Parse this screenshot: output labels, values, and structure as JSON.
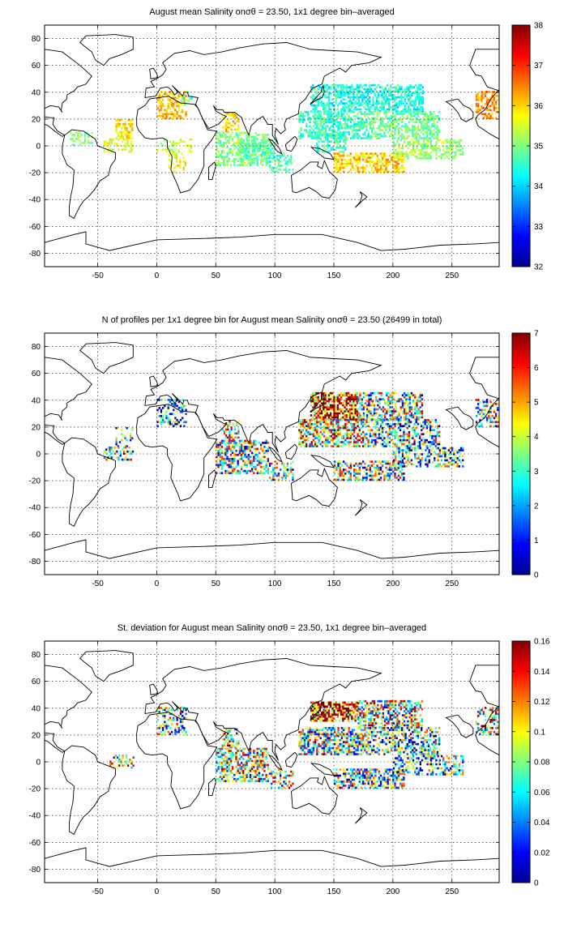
{
  "charts": [
    {
      "title": "August mean Salinity onσθ = 23.50, 1x1 degree bin–averaged",
      "colorbar_ticks": [
        "32",
        "33",
        "34",
        "35",
        "36",
        "37",
        "38"
      ],
      "colorbar_min": 32,
      "colorbar_max": 38,
      "regions": [
        {
          "lon": [
            0,
            25
          ],
          "lat": [
            20,
            40
          ],
          "value": 36.1,
          "density": 0.55
        },
        {
          "lon": [
            -35,
            -20
          ],
          "lat": [
            5,
            20
          ],
          "value": 35.9,
          "density": 0.5
        },
        {
          "lon": [
            -45,
            -20
          ],
          "lat": [
            -5,
            5
          ],
          "value": 35.5,
          "density": 0.45
        },
        {
          "lon": [
            -75,
            -55
          ],
          "lat": [
            0,
            10
          ],
          "value": 35.1,
          "density": 0.3
        },
        {
          "lon": [
            10,
            25
          ],
          "lat": [
            -20,
            -5
          ],
          "value": 35.7,
          "density": 0.3
        },
        {
          "lon": [
            20,
            30
          ],
          "lat": [
            30,
            40
          ],
          "value": 34.6,
          "density": 0.35
        },
        {
          "lon": [
            55,
            70
          ],
          "lat": [
            10,
            25
          ],
          "value": 36.0,
          "density": 0.45
        },
        {
          "lon": [
            50,
            95
          ],
          "lat": [
            -15,
            10
          ],
          "value": 35.0,
          "density": 0.55
        },
        {
          "lon": [
            70,
            100
          ],
          "lat": [
            -10,
            5
          ],
          "value": 34.7,
          "density": 0.5
        },
        {
          "lon": [
            95,
            115
          ],
          "lat": [
            -20,
            -5
          ],
          "value": 34.6,
          "density": 0.45
        },
        {
          "lon": [
            130,
            225
          ],
          "lat": [
            25,
            45
          ],
          "value": 34.4,
          "density": 0.6
        },
        {
          "lon": [
            120,
            180
          ],
          "lat": [
            5,
            25
          ],
          "value": 34.6,
          "density": 0.6
        },
        {
          "lon": [
            180,
            240
          ],
          "lat": [
            5,
            25
          ],
          "value": 34.9,
          "density": 0.55
        },
        {
          "lon": [
            150,
            210
          ],
          "lat": [
            -20,
            -5
          ],
          "value": 36.0,
          "density": 0.6
        },
        {
          "lon": [
            200,
            260
          ],
          "lat": [
            -10,
            5
          ],
          "value": 35.2,
          "density": 0.5
        },
        {
          "lon": [
            135,
            160
          ],
          "lat": [
            -5,
            10
          ],
          "value": 34.6,
          "density": 0.5
        },
        {
          "lon": [
            270,
            290
          ],
          "lat": [
            20,
            40
          ],
          "value": 36.4,
          "density": 0.5
        },
        {
          "lon": [
            0,
            30
          ],
          "lat": [
            -5,
            5
          ],
          "value": 35.3,
          "density": 0.3
        }
      ]
    },
    {
      "title": "N of profiles per 1x1 degree bin for August mean Salinity onσθ = 23.50 (26499 in total)",
      "colorbar_ticks": [
        "0",
        "1",
        "2",
        "3",
        "4",
        "5",
        "6",
        "7"
      ],
      "colorbar_min": 0,
      "colorbar_max": 7,
      "regions": [
        {
          "lon": [
            0,
            25
          ],
          "lat": [
            20,
            40
          ],
          "value": 1.8,
          "density": 0.35
        },
        {
          "lon": [
            -35,
            -20
          ],
          "lat": [
            5,
            20
          ],
          "value": 2.0,
          "density": 0.3
        },
        {
          "lon": [
            -45,
            -20
          ],
          "lat": [
            -5,
            5
          ],
          "value": 3.0,
          "density": 0.45
        },
        {
          "lon": [
            50,
            95
          ],
          "lat": [
            -15,
            10
          ],
          "value": 3.5,
          "density": 0.55
        },
        {
          "lon": [
            55,
            70
          ],
          "lat": [
            10,
            25
          ],
          "value": 4.5,
          "density": 0.4
        },
        {
          "lon": [
            95,
            115
          ],
          "lat": [
            -20,
            -5
          ],
          "value": 3.0,
          "density": 0.4
        },
        {
          "lon": [
            130,
            170
          ],
          "lat": [
            25,
            45
          ],
          "value": 6.2,
          "density": 0.7
        },
        {
          "lon": [
            170,
            225
          ],
          "lat": [
            25,
            45
          ],
          "value": 3.5,
          "density": 0.55
        },
        {
          "lon": [
            120,
            180
          ],
          "lat": [
            5,
            25
          ],
          "value": 4.5,
          "density": 0.6
        },
        {
          "lon": [
            180,
            240
          ],
          "lat": [
            5,
            25
          ],
          "value": 3.0,
          "density": 0.5
        },
        {
          "lon": [
            150,
            210
          ],
          "lat": [
            -20,
            -5
          ],
          "value": 3.2,
          "density": 0.55
        },
        {
          "lon": [
            200,
            260
          ],
          "lat": [
            -10,
            5
          ],
          "value": 2.5,
          "density": 0.45
        },
        {
          "lon": [
            270,
            290
          ],
          "lat": [
            20,
            40
          ],
          "value": 3.5,
          "density": 0.4
        }
      ]
    },
    {
      "title": "St. deviation for August mean Salinity onσθ = 23.50, 1x1 degree bin–averaged",
      "colorbar_ticks": [
        "0",
        "0.02",
        "0.04",
        "0.06",
        "0.08",
        "0.1",
        "0.12",
        "0.14",
        "0.16"
      ],
      "colorbar_min": 0,
      "colorbar_max": 0.16,
      "regions": [
        {
          "lon": [
            0,
            25
          ],
          "lat": [
            20,
            40
          ],
          "value": 0.07,
          "density": 0.35
        },
        {
          "lon": [
            -40,
            -20
          ],
          "lat": [
            -5,
            5
          ],
          "value": 0.09,
          "density": 0.4
        },
        {
          "lon": [
            50,
            95
          ],
          "lat": [
            -15,
            10
          ],
          "value": 0.09,
          "density": 0.55
        },
        {
          "lon": [
            55,
            70
          ],
          "lat": [
            10,
            25
          ],
          "value": 0.1,
          "density": 0.4
        },
        {
          "lon": [
            95,
            115
          ],
          "lat": [
            -20,
            -5
          ],
          "value": 0.08,
          "density": 0.4
        },
        {
          "lon": [
            130,
            170
          ],
          "lat": [
            30,
            45
          ],
          "value": 0.14,
          "density": 0.7
        },
        {
          "lon": [
            170,
            225
          ],
          "lat": [
            25,
            45
          ],
          "value": 0.09,
          "density": 0.55
        },
        {
          "lon": [
            120,
            180
          ],
          "lat": [
            5,
            25
          ],
          "value": 0.08,
          "density": 0.6
        },
        {
          "lon": [
            180,
            240
          ],
          "lat": [
            5,
            25
          ],
          "value": 0.06,
          "density": 0.5
        },
        {
          "lon": [
            150,
            210
          ],
          "lat": [
            -20,
            -5
          ],
          "value": 0.07,
          "density": 0.55
        },
        {
          "lon": [
            200,
            260
          ],
          "lat": [
            -10,
            5
          ],
          "value": 0.06,
          "density": 0.45
        },
        {
          "lon": [
            270,
            290
          ],
          "lat": [
            20,
            40
          ],
          "value": 0.1,
          "density": 0.4
        }
      ]
    }
  ],
  "x_ticks": [
    "-50",
    "0",
    "50",
    "100",
    "150",
    "200",
    "250"
  ],
  "y_ticks": [
    "80",
    "60",
    "40",
    "20",
    "0",
    "-20",
    "-40",
    "-60",
    "-80"
  ],
  "chart_data": [
    {
      "type": "heatmap",
      "title": "August mean Salinity onσθ = 23.50, 1x1 degree bin–averaged",
      "xlim": [
        -95,
        290
      ],
      "ylim": [
        -90,
        90
      ],
      "colorbar_range": [
        32,
        38
      ],
      "x_ticks": [
        -50,
        0,
        50,
        100,
        150,
        200,
        250
      ],
      "y_ticks": [
        -80,
        -60,
        -40,
        -20,
        0,
        20,
        40,
        60,
        80
      ],
      "grid": true,
      "colormap": "jet"
    },
    {
      "type": "heatmap",
      "title": "N of profiles per 1x1 degree bin for August mean Salinity onσθ = 23.50 (26499 in total)",
      "xlim": [
        -95,
        290
      ],
      "ylim": [
        -90,
        90
      ],
      "colorbar_range": [
        0,
        7
      ],
      "x_ticks": [
        -50,
        0,
        50,
        100,
        150,
        200,
        250
      ],
      "y_ticks": [
        -80,
        -60,
        -40,
        -20,
        0,
        20,
        40,
        60,
        80
      ],
      "grid": true,
      "colormap": "jet"
    },
    {
      "type": "heatmap",
      "title": "St. deviation for August mean Salinity onσθ = 23.50, 1x1 degree bin–averaged",
      "xlim": [
        -95,
        290
      ],
      "ylim": [
        -90,
        90
      ],
      "colorbar_range": [
        0,
        0.16
      ],
      "x_ticks": [
        -50,
        0,
        50,
        100,
        150,
        200,
        250
      ],
      "y_ticks": [
        -80,
        -60,
        -40,
        -20,
        0,
        20,
        40,
        60,
        80
      ],
      "grid": true,
      "colormap": "jet"
    }
  ]
}
